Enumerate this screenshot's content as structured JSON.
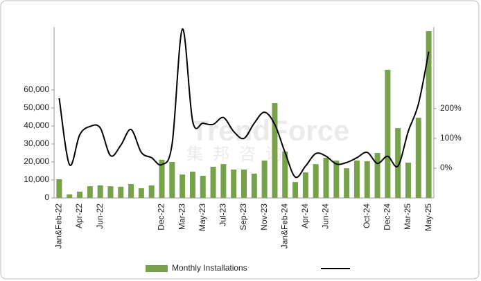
{
  "chart_data": {
    "type": "bar-line",
    "watermark": "TrendForce",
    "watermark_sub": "集邦咨询",
    "categories": [
      "Jan&Feb-22",
      null,
      "Apr-22",
      null,
      "Jun-22",
      null,
      null,
      null,
      null,
      null,
      "Dec-22",
      null,
      "Mar-23",
      null,
      "May-23",
      null,
      "Jul-23",
      null,
      "Sep-23",
      null,
      "Nov-23",
      null,
      "Jan&Feb-24",
      null,
      "Apr-24",
      null,
      "Jun-24",
      null,
      null,
      null,
      "Oct-24",
      null,
      "Dec-24",
      null,
      "Mar-25",
      null,
      "May-25"
    ],
    "series": [
      {
        "name": "Monthly Installations",
        "kind": "bar",
        "color": "#77a24a",
        "values": [
          10400,
          2000,
          3500,
          6500,
          7000,
          6500,
          6200,
          7700,
          5400,
          7000,
          21200,
          20000,
          13000,
          14600,
          12300,
          17300,
          18800,
          15800,
          15800,
          13500,
          20800,
          52700,
          25800,
          8800,
          14200,
          18800,
          22300,
          20800,
          16500,
          20800,
          20400,
          25000,
          71200,
          38800,
          19600,
          44600,
          92700
        ]
      },
      {
        "kind": "line",
        "axis": "y2",
        "color": "#000000",
        "values": [
          235,
          12,
          112,
          140,
          135,
          42,
          77,
          130,
          53,
          35,
          12,
          81,
          467,
          158,
          151,
          147,
          170,
          123,
          100,
          151,
          188,
          147,
          53,
          -30,
          7,
          49,
          40,
          14,
          19,
          35,
          53,
          16,
          40,
          7,
          123,
          216,
          391
        ]
      }
    ],
    "ylim": [
      0,
      95000
    ],
    "yticks": [
      0,
      {
        "value": 10000,
        "label": "10,000"
      },
      {
        "value": 20000,
        "label": "20,000"
      },
      {
        "value": 30000,
        "label": "30,000"
      },
      {
        "value": 40000,
        "label": "40,000"
      },
      {
        "value": 50000,
        "label": "50,000"
      },
      {
        "value": 60000,
        "label": "60,000"
      }
    ],
    "y2lim": [
      -100,
      474
    ],
    "y2ticks": [
      {
        "value": 0,
        "label": "0%"
      },
      {
        "value": 100,
        "label": "100%"
      },
      {
        "value": 200,
        "label": "200%"
      }
    ]
  }
}
